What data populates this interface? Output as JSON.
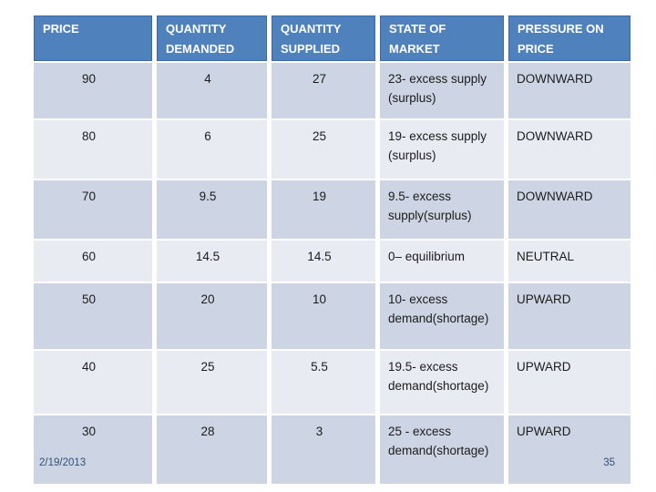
{
  "table": {
    "headers": [
      "PRICE",
      "QUANTITY DEMANDED",
      "QUANTITY SUPPLIED",
      "STATE OF MARKET",
      "PRESSURE ON PRICE"
    ],
    "rows": [
      {
        "price": "90",
        "demanded": "4",
        "supplied": "27",
        "state": "23- excess supply (surplus)",
        "pressure": "DOWNWARD"
      },
      {
        "price": "80",
        "demanded": "6",
        "supplied": "25",
        "state": "19- excess supply (surplus)",
        "pressure": "DOWNWARD"
      },
      {
        "price": "70",
        "demanded": "9.5",
        "supplied": "19",
        "state": "9.5- excess supply(surplus)",
        "pressure": "DOWNWARD"
      },
      {
        "price": "60",
        "demanded": "14.5",
        "supplied": "14.5",
        "state": "0– equilibrium",
        "pressure": "NEUTRAL"
      },
      {
        "price": "50",
        "demanded": "20",
        "supplied": "10",
        "state": "10- excess demand(shortage)",
        "pressure": "UPWARD"
      },
      {
        "price": "40",
        "demanded": "25",
        "supplied": "5.5",
        "state": "19.5- excess demand(shortage)",
        "pressure": "UPWARD"
      },
      {
        "price": "30",
        "demanded": "28",
        "supplied": "3",
        "state": "25 - excess demand(shortage)",
        "pressure": "UPWARD"
      }
    ]
  },
  "footer": {
    "date": "2/19/2013",
    "page": "35"
  },
  "colors": {
    "header_bg": "#4F81BD",
    "header_text": "#FFFFFF",
    "row_dark": "#CDD4E3",
    "row_light": "#E9EBF3",
    "body_text": "#1C1C1C",
    "footer_text": "#31517B",
    "slide_bg": "#FFFFFF"
  }
}
